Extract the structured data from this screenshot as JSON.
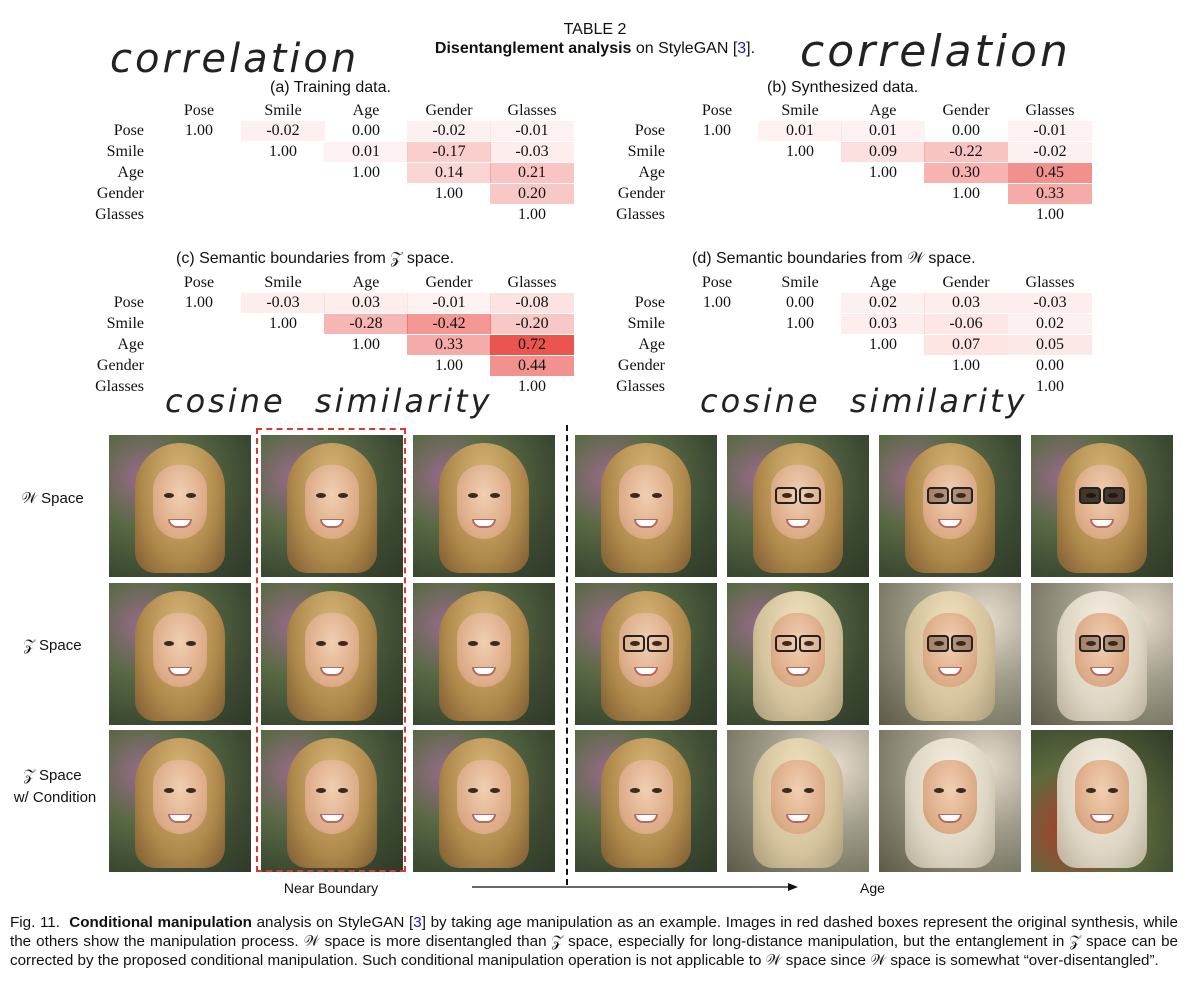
{
  "table": {
    "number": "TABLE 2",
    "title_bold": "Disentanglement analysis",
    "title_rest": " on StyleGAN [",
    "ref": "3",
    "title_end": "].",
    "headers": [
      "Pose",
      "Smile",
      "Age",
      "Gender",
      "Glasses"
    ],
    "rows": [
      "Pose",
      "Smile",
      "Age",
      "Gender",
      "Glasses"
    ],
    "subtables": [
      {
        "caption": "(a) Training data.",
        "values": [
          [
            "1.00",
            "-0.02",
            "0.00",
            "-0.02",
            "-0.01"
          ],
          [
            "",
            "1.00",
            "0.01",
            "-0.17",
            "-0.03"
          ],
          [
            "",
            "",
            "1.00",
            "0.14",
            "0.21"
          ],
          [
            "",
            "",
            "",
            "1.00",
            "0.20"
          ],
          [
            "",
            "",
            "",
            "",
            "1.00"
          ]
        ]
      },
      {
        "caption": "(b) Synthesized data.",
        "values": [
          [
            "1.00",
            "0.01",
            "0.01",
            "0.00",
            "-0.01"
          ],
          [
            "",
            "1.00",
            "0.09",
            "-0.22",
            "-0.02"
          ],
          [
            "",
            "",
            "1.00",
            "0.30",
            "0.45"
          ],
          [
            "",
            "",
            "",
            "1.00",
            "0.33"
          ],
          [
            "",
            "",
            "",
            "",
            "1.00"
          ]
        ]
      },
      {
        "caption": "(c) Semantic boundaries from 𝒵 space.",
        "values": [
          [
            "1.00",
            "-0.03",
            "0.03",
            "-0.01",
            "-0.08"
          ],
          [
            "",
            "1.00",
            "-0.28",
            "-0.42",
            "-0.20"
          ],
          [
            "",
            "",
            "1.00",
            "0.33",
            "0.72"
          ],
          [
            "",
            "",
            "",
            "1.00",
            "0.44"
          ],
          [
            "",
            "",
            "",
            "",
            "1.00"
          ]
        ]
      },
      {
        "caption": "(d) Semantic boundaries from 𝒲 space.",
        "values": [
          [
            "1.00",
            "0.00",
            "0.02",
            "0.03",
            "-0.03"
          ],
          [
            "",
            "1.00",
            "0.03",
            "-0.06",
            "0.02"
          ],
          [
            "",
            "",
            "1.00",
            "0.07",
            "0.05"
          ],
          [
            "",
            "",
            "",
            "1.00",
            "0.00"
          ],
          [
            "",
            "",
            "",
            "",
            "1.00"
          ]
        ]
      }
    ]
  },
  "annotations": {
    "correlation": "correlation",
    "cosine": "cosine similarity"
  },
  "figure": {
    "row_labels": [
      "𝒲 Space",
      "𝒵 Space",
      "𝒵 Space",
      "w/ Condition"
    ],
    "near_boundary": "Near Boundary",
    "axis_label": "Age",
    "caption_prefix": "Fig. 11.",
    "caption_bold": "Conditional manipulation",
    "caption_a": " analysis on StyleGAN [",
    "caption_ref": "3",
    "caption_b": "] by taking age manipulation as an example. Images in red dashed boxes represent the original synthesis, while the others show the manipulation process. 𝒲 space is more disentangled than 𝒵 space, especially for long-distance manipulation, but the entanglement in 𝒵 space can be corrected by the proposed conditional manipulation. Such conditional manipulation operation is not applicable to 𝒲 space since 𝒲 space is somewhat “over-disentangled”.",
    "colors": {
      "accent_red": "#e8403a",
      "link_blue": "#1a1acc",
      "dash_red": "#d93a30"
    }
  }
}
